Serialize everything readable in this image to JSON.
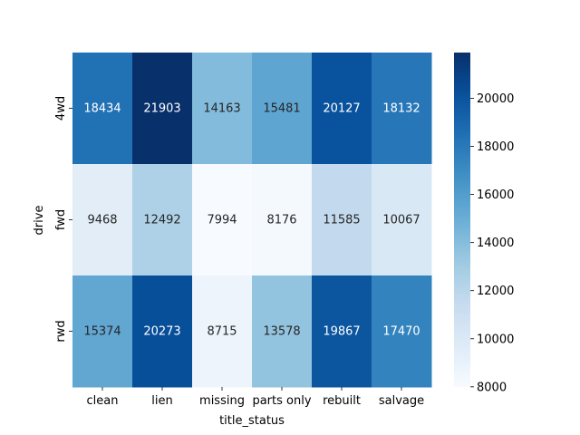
{
  "chart_data": {
    "type": "heatmap",
    "title": "",
    "xlabel": "title_status",
    "ylabel": "drive",
    "x_categories": [
      "clean",
      "lien",
      "missing",
      "parts only",
      "rebuilt",
      "salvage"
    ],
    "y_categories": [
      "4wd",
      "fwd",
      "rwd"
    ],
    "values": [
      [
        18434,
        21903,
        14163,
        15481,
        20127,
        18132
      ],
      [
        9468,
        12492,
        7994,
        8176,
        11585,
        10067
      ],
      [
        15374,
        20273,
        8715,
        13578,
        19867,
        17470
      ]
    ],
    "colormap": "Blues",
    "color_range": [
      7994,
      21903
    ],
    "colorbar_ticks": [
      "8000",
      "10000",
      "12000",
      "14000",
      "16000",
      "18000",
      "20000"
    ],
    "annotations": true
  }
}
